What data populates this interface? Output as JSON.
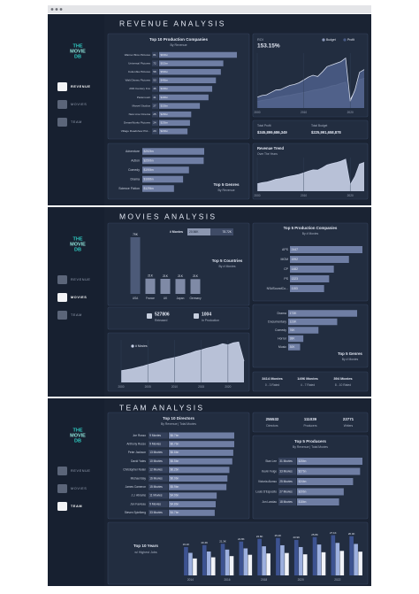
{
  "sidebar": {
    "logo": [
      "THE",
      "MOVIE",
      "DB"
    ],
    "nav": [
      "REVENUE",
      "MOVIES",
      "TEAM"
    ]
  },
  "revenue": {
    "title": "REVENUE ANALYSIS",
    "companies": {
      "title": "Top 10 Production Companies",
      "subtitle": "By Revenue",
      "color": "#6f7ea4",
      "names": [
        "Warner Bros Pictures",
        "Universal Pictures",
        "Columbia Pictures",
        "Walt Disney Pictures",
        "20th Century Fox",
        "Paramount",
        "Marvel Studios",
        "New Line Cinema",
        "DreamWorks Pictures",
        "Village Roadshow Pict..."
      ],
      "counts": [
        81,
        72,
        58,
        53,
        46,
        41,
        27,
        25,
        24,
        23
      ],
      "values": [
        63,
        52,
        50,
        46,
        43,
        40,
        33,
        26,
        25,
        23
      ],
      "value_labels": [
        "$63bn",
        "$52bn",
        "$50bn",
        "$46bn",
        "$43bn",
        "$40bn",
        "$33bn",
        "$26bn",
        "$25bn",
        "$23bn"
      ]
    },
    "roi": {
      "label": "ROI",
      "value": "153.15%",
      "x": [
        2000,
        2001,
        2002,
        2003,
        2004,
        2005,
        2006,
        2007,
        2008,
        2009,
        2010,
        2011,
        2012,
        2013,
        2014,
        2015,
        2016,
        2017,
        2018,
        2019,
        2020,
        2021,
        2022,
        2023
      ],
      "xticks": [
        2000,
        2010,
        2020
      ],
      "series": [
        {
          "name": "Budget",
          "color": "#8e9abb",
          "values": [
            3.1,
            3.6,
            4.0,
            4.3,
            4.9,
            5.4,
            5.8,
            6.1,
            6.6,
            7.0,
            7.4,
            7.9,
            8.5,
            8.8,
            9.3,
            9.9,
            10.6,
            11.0,
            11.8,
            12.4,
            4.1,
            7.9,
            13.6,
            14.2
          ]
        },
        {
          "name": "Profit",
          "color": "#4a5c86",
          "values": [
            5.2,
            6.0,
            6.3,
            7.5,
            8.6,
            8.8,
            9.9,
            10.8,
            11.3,
            12.1,
            13.4,
            14.8,
            15.7,
            15.1,
            17.3,
            19.8,
            20.6,
            21.4,
            22.2,
            23.9,
            3.2,
            8.6,
            17.1,
            18.4
          ]
        }
      ]
    },
    "totals": {
      "profit_label": "Total Profit",
      "profit": "$345,899,686,349",
      "budget_label": "Total Budget",
      "budget": "$225,991,658,878"
    },
    "genres": {
      "title": "Top 5 Genres",
      "subtitle": "By Revenue",
      "color": "#6f7ea4",
      "names": [
        "Adventure",
        "Action",
        "Comedy",
        "Drama",
        "Science Fiction"
      ],
      "values": [
        252,
        250,
        190,
        166,
        129
      ],
      "value_labels": [
        "$252bn",
        "$250bn",
        "$190bn",
        "$166bn",
        "$129bn"
      ]
    },
    "trend": {
      "title": "Revenue Trend",
      "subtitle": "Over The Years",
      "color": "#c9d2e8",
      "x": [
        2000,
        2001,
        2002,
        2003,
        2004,
        2005,
        2006,
        2007,
        2008,
        2009,
        2010,
        2011,
        2012,
        2013,
        2014,
        2015,
        2016,
        2017,
        2018,
        2019,
        2020,
        2021,
        2022,
        2023
      ],
      "xticks": [
        2000,
        2010,
        2020
      ],
      "values": [
        8.3,
        9.6,
        10.3,
        11.8,
        13.5,
        14.2,
        15.7,
        16.9,
        17.9,
        19.1,
        20.8,
        22.7,
        24.2,
        23.9,
        26.6,
        29.7,
        31.2,
        32.4,
        34.0,
        36.3,
        7.3,
        16.5,
        30.7,
        32.6
      ]
    }
  },
  "movies": {
    "title": "MOVIES ANALYSIS",
    "countries": {
      "title": "Top 5 Countries",
      "subtitle": "By # Movies",
      "legend_title": "# Movies",
      "legend_min": "20.56K",
      "legend_max": "78.72K",
      "color": "#4c5a78",
      "names": [
        "USA",
        "France",
        "UK",
        "Japan",
        "Germany"
      ],
      "values": [
        78.72,
        21.2,
        20.9,
        20.7,
        20.56
      ],
      "value_labels": [
        "79K",
        "21K",
        "21K",
        "21K",
        "21K"
      ]
    },
    "companies": {
      "title": "Top 5 Production Companies",
      "subtitle": "By # Movies",
      "color": "#6f7ea4",
      "names": [
        "APS",
        "MGM",
        "CP",
        "PS",
        "NSdSoundCo..."
      ],
      "values": [
        2447,
        1992,
        1482,
        1323,
        1153
      ]
    },
    "stats": {
      "released": "527806",
      "released_label": "Released",
      "production": "1004",
      "production_label": "In Production"
    },
    "genres": {
      "title": "Top 5 Genres",
      "subtitle": "By # Movies",
      "color": "#6f7ea4",
      "names": [
        "Drama",
        "Documentary",
        "Comedy",
        "Horror",
        "Music"
      ],
      "values": [
        173,
        123,
        76,
        38,
        30
      ],
      "value_labels": [
        "173K",
        "123K",
        "76K",
        "38K",
        "30K"
      ]
    },
    "trend": {
      "legend": "# Movies",
      "color": "#c9d2e8",
      "x": [
        2000,
        2001,
        2002,
        2003,
        2004,
        2005,
        2006,
        2007,
        2008,
        2009,
        2010,
        2011,
        2012,
        2013,
        2014,
        2015,
        2016,
        2017,
        2018,
        2019,
        2020,
        2021,
        2022,
        2023
      ],
      "xticks": [
        2000,
        2005,
        2010,
        2015,
        2020
      ],
      "values": [
        7.8,
        8.4,
        9.1,
        9.9,
        10.8,
        11.9,
        12.8,
        13.9,
        15.1,
        15.8,
        16.6,
        17.5,
        18.6,
        19.6,
        20.9,
        21.7,
        22.8,
        23.6,
        24.5,
        25.8,
        25.1,
        26.4,
        27.0,
        14.2
      ]
    },
    "rated": [
      {
        "value": "3414 Movies",
        "label": "0 - 3 Rated"
      },
      {
        "value": "1496 Movies",
        "label": "4 - 7 Rated"
      },
      {
        "value": "394 Movies",
        "label": "8 - 10 Rated"
      }
    ]
  },
  "team": {
    "title": "TEAM ANALYSIS",
    "directors": {
      "title": "Top 10 Directors",
      "subtitle": "By Revenue | Total Movies",
      "color": "#6f7ea4",
      "names": [
        "Joe Russo",
        "Anthony Russo",
        "Peter Jackson",
        "David Yates",
        "Christopher Nolan",
        "Michael Bay",
        "James Cameron",
        "J.J. Abrams",
        "Jon Favreau",
        "Steven Spielberg"
      ],
      "counts": [
        "9 Movies",
        "9 Movies",
        "13 Movies",
        "10 Movies",
        "12 Movies",
        "16 Movies",
        "15 Movies",
        "11 Movies",
        "9 Movies",
        "33 Movies"
      ],
      "values": [
        6.7,
        6.7,
        6.6,
        6.5,
        6.2,
        6.0,
        5.9,
        4.9,
        4.8,
        4.7
      ],
      "value_labels": [
        "$6.7bn",
        "$6.7bn",
        "$6.6bn",
        "$6.5bn",
        "$6.2bn",
        "$6.0bn",
        "$5.9bn",
        "$4.9bn",
        "$4.8bn",
        "$4.7bn"
      ]
    },
    "people": [
      {
        "value": "255532",
        "label": "Directors"
      },
      {
        "value": "111039",
        "label": "Producers"
      },
      {
        "value": "22771",
        "label": "Writers"
      }
    ],
    "producers": {
      "title": "Top 5 Producers",
      "subtitle": "By Revenue | Total Movies",
      "color": "#6f7ea4",
      "names": [
        "Stan Lee",
        "Kevin Feige",
        "Victoria Alonso",
        "Louis D'Esposito",
        "Jon Landau"
      ],
      "counts": [
        "31 Movies",
        "33 Movies",
        "25 Movies",
        "27 Movies",
        "18 Movies"
      ],
      "values": [
        28,
        27,
        24,
        20,
        18
      ],
      "value_labels": [
        "$28bn",
        "$27bn",
        "$24bn",
        "$20bn",
        "$18bn"
      ]
    },
    "years": {
      "title": "Top 10 Years",
      "subtitle": "w/ Highest Jobs",
      "categories": [
        "2014",
        null,
        "2016",
        null,
        "2018",
        null,
        "2020",
        null,
        "2022",
        null
      ],
      "series": [
        {
          "color": "#3d5391",
          "values": [
            19.1,
            20.4,
            21.3,
            22.8,
            24.6,
            25.2,
            23.9,
            25.8,
            27.1,
            26.4
          ],
          "value_labels": [
            "19.1K",
            "20.4K",
            "21.3K",
            "22.8K",
            "24.6K",
            "25.2K",
            "23.9K",
            "25.8K",
            "27.1K",
            "26.4K"
          ]
        },
        {
          "color": "#9db0df",
          "values": [
            15.2,
            16.1,
            17.4,
            18.2,
            19.6,
            20.3,
            19.1,
            20.8,
            21.9,
            21.2
          ]
        },
        {
          "color": "#f1f3f8",
          "values": [
            11.4,
            12.2,
            13.0,
            13.9,
            14.8,
            15.1,
            14.2,
            15.6,
            16.5,
            16.0
          ]
        }
      ]
    }
  }
}
